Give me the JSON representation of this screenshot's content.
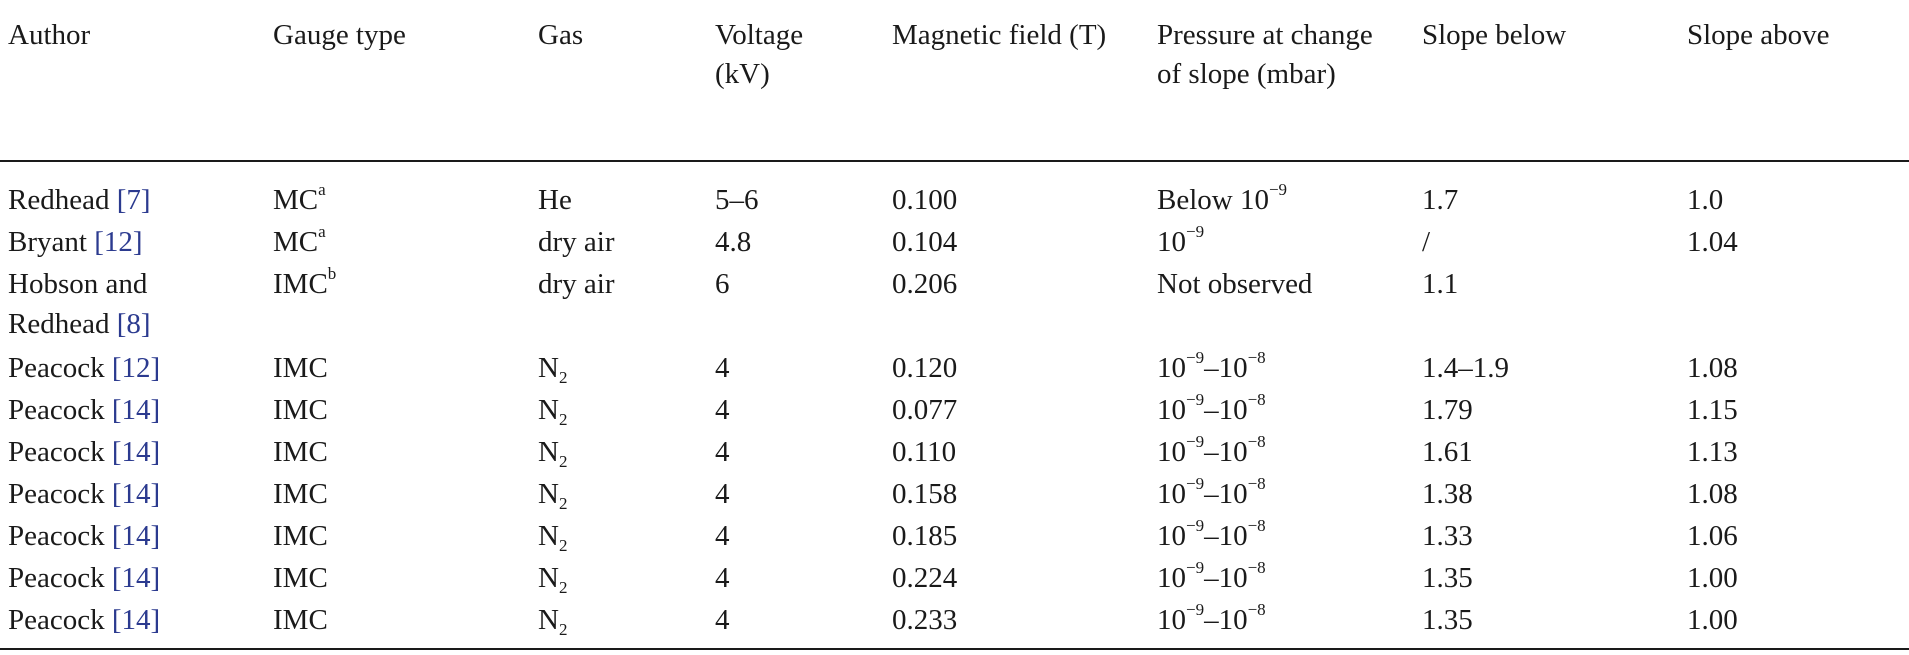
{
  "headers": [
    "Author",
    "Gauge type",
    "Gas",
    "Voltage (kV)",
    "Magnetic field (T)",
    "Pressure at change of slope (mbar)",
    "Slope below",
    "Slope above"
  ],
  "rows": [
    {
      "author": "Redhead",
      "ref": "[7]",
      "gauge": "MC",
      "gauge_sup": "a",
      "gas": "He",
      "gas_sub": "",
      "voltage": "5–6",
      "field": "0.100",
      "pressure": "Below 10",
      "pressure_exp": "−9",
      "pressure_exp2": "",
      "slope_below": "1.7",
      "slope_above": "1.0"
    },
    {
      "author": "Bryant",
      "ref": "[12]",
      "gauge": "MC",
      "gauge_sup": "a",
      "gas": "dry air",
      "gas_sub": "",
      "voltage": "4.8",
      "field": "0.104",
      "pressure": "10",
      "pressure_exp": "−9",
      "pressure_exp2": "",
      "slope_below": "/",
      "slope_above": "1.04"
    },
    {
      "author": "Hobson and",
      "author_line2": "Redhead",
      "ref": "[8]",
      "gauge": "IMC",
      "gauge_sup": "b",
      "gas": "dry air",
      "gas_sub": "",
      "voltage": "6",
      "field": "0.206",
      "pressure": "Not observed",
      "pressure_exp": "",
      "pressure_exp2": "",
      "slope_below": "1.1",
      "slope_above": ""
    },
    {
      "author": "Peacock",
      "ref": "[12]",
      "gauge": "IMC",
      "gauge_sup": "",
      "gas": "N",
      "gas_sub": "2",
      "voltage": "4",
      "field": "0.120",
      "pressure": "10",
      "pressure_exp": "−9",
      "pressure_mid": "–10",
      "pressure_exp2": "−8",
      "slope_below": "1.4–1.9",
      "slope_above": "1.08"
    },
    {
      "author": "Peacock",
      "ref": "[14]",
      "gauge": "IMC",
      "gauge_sup": "",
      "gas": "N",
      "gas_sub": "2",
      "voltage": "4",
      "field": "0.077",
      "pressure": "10",
      "pressure_exp": "−9",
      "pressure_mid": "–10",
      "pressure_exp2": "−8",
      "slope_below": "1.79",
      "slope_above": "1.15"
    },
    {
      "author": "Peacock",
      "ref": "[14]",
      "gauge": "IMC",
      "gauge_sup": "",
      "gas": "N",
      "gas_sub": "2",
      "voltage": "4",
      "field": "0.110",
      "pressure": "10",
      "pressure_exp": "−9",
      "pressure_mid": "–10",
      "pressure_exp2": "−8",
      "slope_below": "1.61",
      "slope_above": "1.13"
    },
    {
      "author": "Peacock",
      "ref": "[14]",
      "gauge": "IMC",
      "gauge_sup": "",
      "gas": "N",
      "gas_sub": "2",
      "voltage": "4",
      "field": "0.158",
      "pressure": "10",
      "pressure_exp": "−9",
      "pressure_mid": "–10",
      "pressure_exp2": "−8",
      "slope_below": "1.38",
      "slope_above": "1.08"
    },
    {
      "author": "Peacock",
      "ref": "[14]",
      "gauge": "IMC",
      "gauge_sup": "",
      "gas": "N",
      "gas_sub": "2",
      "voltage": "4",
      "field": "0.185",
      "pressure": "10",
      "pressure_exp": "−9",
      "pressure_mid": "–10",
      "pressure_exp2": "−8",
      "slope_below": "1.33",
      "slope_above": "1.06"
    },
    {
      "author": "Peacock",
      "ref": "[14]",
      "gauge": "IMC",
      "gauge_sup": "",
      "gas": "N",
      "gas_sub": "2",
      "voltage": "4",
      "field": "0.224",
      "pressure": "10",
      "pressure_exp": "−9",
      "pressure_mid": "–10",
      "pressure_exp2": "−8",
      "slope_below": "1.35",
      "slope_above": "1.00"
    },
    {
      "author": "Peacock",
      "ref": "[14]",
      "gauge": "IMC",
      "gauge_sup": "",
      "gas": "N",
      "gas_sub": "2",
      "voltage": "4",
      "field": "0.233",
      "pressure": "10",
      "pressure_exp": "−9",
      "pressure_mid": "–10",
      "pressure_exp2": "−8",
      "slope_below": "1.35",
      "slope_above": "1.00"
    }
  ]
}
